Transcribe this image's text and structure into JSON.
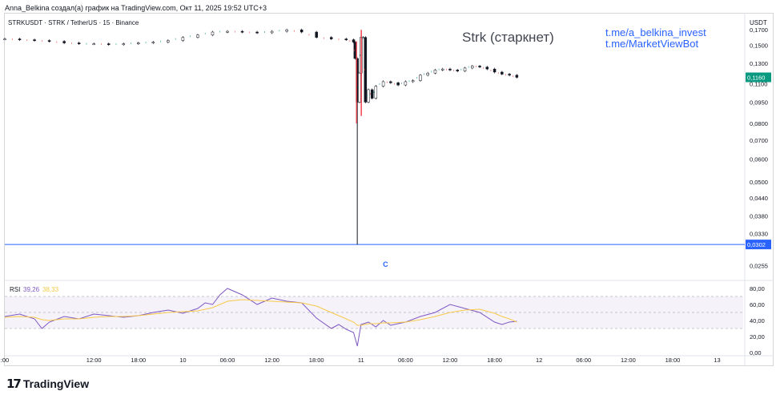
{
  "header": {
    "caption": "Anna_Belkina создал(а) график на TradingView.com, Окт 11, 2025 19:52 UTC+3"
  },
  "brand": {
    "logo_mark": "17",
    "name": "TradingView"
  },
  "chart_data": {
    "type": "candlestick",
    "symbol_line": "STRKUSDT · STRK / TetherUS · 15 · Binance",
    "annotation_title": "Strk (старкнет)",
    "links": [
      "t.me/a_belkina_invest",
      "t.me/MarketViewBot"
    ],
    "currency": "USDT",
    "price_scale": "log",
    "y_ticks": [
      "0,1700",
      "0,1500",
      "0,1300",
      "0,1100",
      "0,0950",
      "0,0800",
      "0,0700",
      "0,0600",
      "0,0500",
      "0,0440",
      "0,0380",
      "0,0330",
      "0,0255"
    ],
    "y_tick_values": [
      0.17,
      0.15,
      0.13,
      0.11,
      0.095,
      0.08,
      0.07,
      0.06,
      0.05,
      0.044,
      0.038,
      0.033,
      0.0255
    ],
    "ylim": [
      0.0235,
      0.19
    ],
    "last_price": {
      "label": "0,1160",
      "value": 0.116,
      "color": "#089981"
    },
    "low_line": {
      "label": "0,0302",
      "value": 0.0302,
      "color": "#2962ff"
    },
    "event_marker": {
      "label": "C",
      "color": "#2962ff"
    },
    "x_ticks": [
      ":00",
      "12:00",
      "18:00",
      "10",
      "06:00",
      "12:00",
      "18:00",
      "11",
      "06:00",
      "12:00",
      "18:00",
      "12",
      "06:00",
      "12:00",
      "18:00",
      "13"
    ],
    "x_tick_hours": [
      0,
      12,
      18,
      24,
      30,
      36,
      42,
      48,
      54,
      60,
      66,
      72,
      78,
      84,
      90,
      96
    ],
    "x_range_hours": [
      0,
      99.5
    ],
    "price_path": {
      "x_hours": [
        0,
        2,
        4,
        6,
        8,
        10,
        12,
        14,
        16,
        18,
        20,
        22,
        24,
        26,
        28,
        30,
        32,
        34,
        36,
        38,
        40,
        42,
        44,
        46,
        47,
        47.2,
        47.5,
        47.8,
        48,
        48.3,
        48.6,
        49,
        49.5,
        50,
        51,
        52,
        53,
        54,
        55,
        56,
        57,
        58,
        59,
        60,
        61,
        62,
        63,
        64,
        65,
        66,
        67,
        68,
        69
      ],
      "close": [
        0.158,
        0.157,
        0.156,
        0.155,
        0.153,
        0.152,
        0.152,
        0.151,
        0.152,
        0.153,
        0.154,
        0.156,
        0.16,
        0.163,
        0.167,
        0.168,
        0.167,
        0.166,
        0.168,
        0.17,
        0.167,
        0.16,
        0.158,
        0.157,
        0.154,
        0.135,
        0.095,
        0.12,
        0.16,
        0.16,
        0.095,
        0.105,
        0.098,
        0.108,
        0.112,
        0.111,
        0.109,
        0.112,
        0.113,
        0.118,
        0.12,
        0.123,
        0.124,
        0.123,
        0.122,
        0.125,
        0.127,
        0.126,
        0.124,
        0.121,
        0.119,
        0.118,
        0.116
      ]
    },
    "spike_low": {
      "x_hour": 47.5,
      "value": 0.0302
    },
    "rsi": {
      "label": "RSI",
      "rsi_value": "39,26",
      "ma_value": "38,33",
      "rsi_color": "#7e57c2",
      "ma_color": "#f7c948",
      "y_ticks": [
        "80,00",
        "60,00",
        "40,00",
        "20,00",
        "0,00"
      ],
      "y_tick_values": [
        80,
        60,
        40,
        20,
        0
      ],
      "ylim": [
        0,
        85
      ],
      "band": [
        30,
        70
      ],
      "mid": 50,
      "x_hours": [
        0,
        2,
        4,
        5,
        6,
        8,
        10,
        12,
        14,
        16,
        18,
        20,
        22,
        24,
        26,
        27,
        28,
        29,
        30,
        32,
        34,
        36,
        38,
        40,
        42,
        44,
        45,
        46,
        47,
        47.5,
        48,
        49,
        50,
        51,
        52,
        54,
        56,
        58,
        60,
        62,
        64,
        66,
        67,
        68,
        69
      ],
      "values": [
        45,
        48,
        42,
        30,
        38,
        45,
        42,
        48,
        46,
        44,
        46,
        50,
        53,
        49,
        55,
        62,
        60,
        72,
        80,
        72,
        60,
        68,
        64,
        62,
        43,
        30,
        35,
        29,
        25,
        8,
        35,
        38,
        32,
        40,
        34,
        38,
        45,
        50,
        60,
        55,
        50,
        38,
        35,
        38,
        39
      ],
      "ma_values": [
        44,
        45,
        44,
        41,
        40,
        42,
        42,
        44,
        45,
        45,
        46,
        48,
        50,
        51,
        52,
        54,
        56,
        60,
        64,
        66,
        65,
        64,
        63,
        62,
        58,
        50,
        46,
        42,
        38,
        34,
        34,
        36,
        36,
        37,
        37,
        38,
        41,
        45,
        50,
        53,
        54,
        49,
        45,
        42,
        38
      ]
    }
  }
}
